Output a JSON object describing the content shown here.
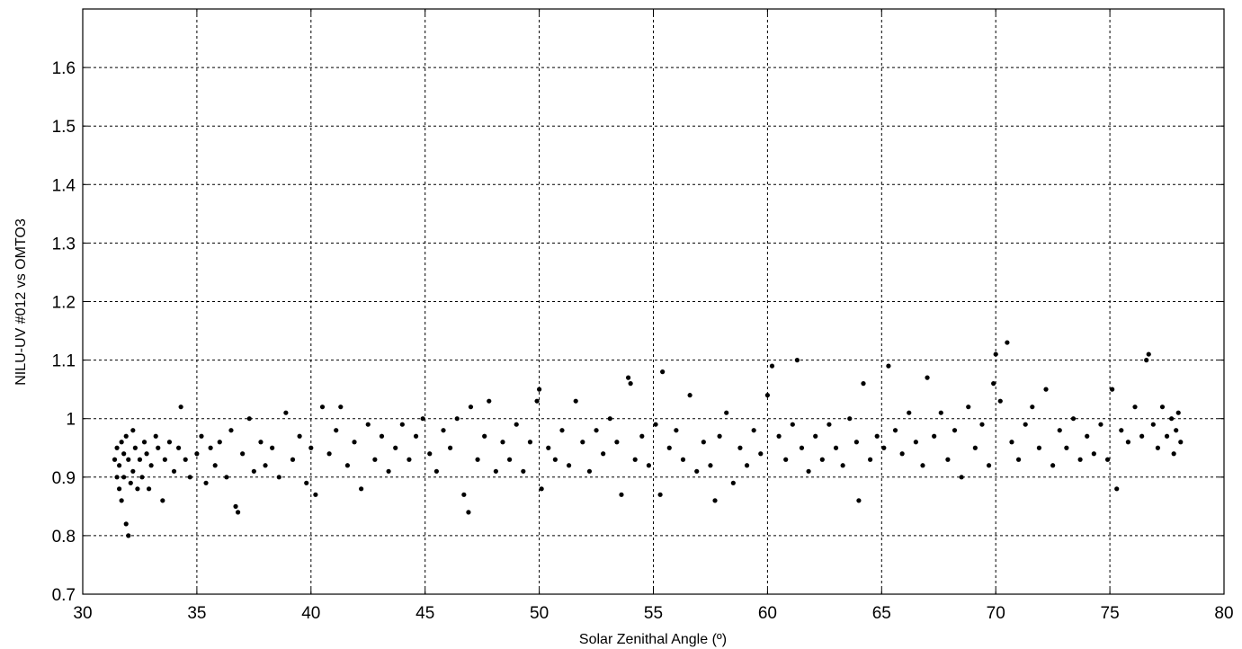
{
  "chart_data": {
    "type": "scatter",
    "title": "",
    "xlabel": "Solar Zenithal Angle (º)",
    "ylabel": "NILU-UV #012 vs OMTO3",
    "xlim": [
      30,
      80
    ],
    "ylim": [
      0.7,
      1.7
    ],
    "x_ticks": [
      "30",
      "35",
      "40",
      "45",
      "50",
      "55",
      "60",
      "65",
      "70",
      "75",
      "80"
    ],
    "y_ticks": [
      "0.7",
      "0.8",
      "0.9",
      "1",
      "1.1",
      "1.2",
      "1.3",
      "1.4",
      "1.5",
      "1.6"
    ],
    "grid": true,
    "marker_color": "#000000",
    "series": [
      {
        "points": [
          [
            31.4,
            0.93
          ],
          [
            31.5,
            0.9
          ],
          [
            31.5,
            0.95
          ],
          [
            31.6,
            0.88
          ],
          [
            31.6,
            0.92
          ],
          [
            31.7,
            0.96
          ],
          [
            31.7,
            0.86
          ],
          [
            31.8,
            0.94
          ],
          [
            31.8,
            0.9
          ],
          [
            31.9,
            0.97
          ],
          [
            31.9,
            0.82
          ],
          [
            32.0,
            0.8
          ],
          [
            32.0,
            0.93
          ],
          [
            32.1,
            0.89
          ],
          [
            32.2,
            0.98
          ],
          [
            32.2,
            0.91
          ],
          [
            32.3,
            0.95
          ],
          [
            32.4,
            0.88
          ],
          [
            32.5,
            0.93
          ],
          [
            32.6,
            0.9
          ],
          [
            32.7,
            0.96
          ],
          [
            32.8,
            0.94
          ],
          [
            32.9,
            0.88
          ],
          [
            33.0,
            0.92
          ],
          [
            33.2,
            0.97
          ],
          [
            33.3,
            0.95
          ],
          [
            33.5,
            0.86
          ],
          [
            33.6,
            0.93
          ],
          [
            33.8,
            0.96
          ],
          [
            34.0,
            0.91
          ],
          [
            34.2,
            0.95
          ],
          [
            34.3,
            1.02
          ],
          [
            34.5,
            0.93
          ],
          [
            34.7,
            0.9
          ],
          [
            35.0,
            0.94
          ],
          [
            35.2,
            0.97
          ],
          [
            35.4,
            0.89
          ],
          [
            35.6,
            0.95
          ],
          [
            35.8,
            0.92
          ],
          [
            36.0,
            0.96
          ],
          [
            36.3,
            0.9
          ],
          [
            36.5,
            0.98
          ],
          [
            36.7,
            0.85
          ],
          [
            36.8,
            0.84
          ],
          [
            37.0,
            0.94
          ],
          [
            37.3,
            1.0
          ],
          [
            37.5,
            0.91
          ],
          [
            37.8,
            0.96
          ],
          [
            38.0,
            0.92
          ],
          [
            38.3,
            0.95
          ],
          [
            38.6,
            0.9
          ],
          [
            38.9,
            1.01
          ],
          [
            39.2,
            0.93
          ],
          [
            39.5,
            0.97
          ],
          [
            39.8,
            0.89
          ],
          [
            40.0,
            0.95
          ],
          [
            40.2,
            0.87
          ],
          [
            40.5,
            1.02
          ],
          [
            40.8,
            0.94
          ],
          [
            41.1,
            0.98
          ],
          [
            41.3,
            1.02
          ],
          [
            41.6,
            0.92
          ],
          [
            41.9,
            0.96
          ],
          [
            42.2,
            0.88
          ],
          [
            42.5,
            0.99
          ],
          [
            42.8,
            0.93
          ],
          [
            43.1,
            0.97
          ],
          [
            43.4,
            0.91
          ],
          [
            43.7,
            0.95
          ],
          [
            44.0,
            0.99
          ],
          [
            44.3,
            0.93
          ],
          [
            44.6,
            0.97
          ],
          [
            44.9,
            1.0
          ],
          [
            45.2,
            0.94
          ],
          [
            45.5,
            0.91
          ],
          [
            45.8,
            0.98
          ],
          [
            46.1,
            0.95
          ],
          [
            46.4,
            1.0
          ],
          [
            46.7,
            0.87
          ],
          [
            46.9,
            0.84
          ],
          [
            47.0,
            1.02
          ],
          [
            47.3,
            0.93
          ],
          [
            47.6,
            0.97
          ],
          [
            47.8,
            1.03
          ],
          [
            48.1,
            0.91
          ],
          [
            48.4,
            0.96
          ],
          [
            48.7,
            0.93
          ],
          [
            49.0,
            0.99
          ],
          [
            49.3,
            0.91
          ],
          [
            49.6,
            0.96
          ],
          [
            49.9,
            1.03
          ],
          [
            50.0,
            1.05
          ],
          [
            50.1,
            0.88
          ],
          [
            50.4,
            0.95
          ],
          [
            50.7,
            0.93
          ],
          [
            51.0,
            0.98
          ],
          [
            51.3,
            0.92
          ],
          [
            51.6,
            1.03
          ],
          [
            51.9,
            0.96
          ],
          [
            52.2,
            0.91
          ],
          [
            52.5,
            0.98
          ],
          [
            52.8,
            0.94
          ],
          [
            53.1,
            1.0
          ],
          [
            53.4,
            0.96
          ],
          [
            53.6,
            0.87
          ],
          [
            53.9,
            1.07
          ],
          [
            54.0,
            1.06
          ],
          [
            54.2,
            0.93
          ],
          [
            54.5,
            0.97
          ],
          [
            54.8,
            0.92
          ],
          [
            55.1,
            0.99
          ],
          [
            55.3,
            0.87
          ],
          [
            55.4,
            1.08
          ],
          [
            55.7,
            0.95
          ],
          [
            56.0,
            0.98
          ],
          [
            56.3,
            0.93
          ],
          [
            56.6,
            1.04
          ],
          [
            56.9,
            0.91
          ],
          [
            57.2,
            0.96
          ],
          [
            57.5,
            0.92
          ],
          [
            57.7,
            0.86
          ],
          [
            57.9,
            0.97
          ],
          [
            58.2,
            1.01
          ],
          [
            58.5,
            0.89
          ],
          [
            58.8,
            0.95
          ],
          [
            59.1,
            0.92
          ],
          [
            59.4,
            0.98
          ],
          [
            59.7,
            0.94
          ],
          [
            60.0,
            1.04
          ],
          [
            60.2,
            1.09
          ],
          [
            60.5,
            0.97
          ],
          [
            60.8,
            0.93
          ],
          [
            61.1,
            0.99
          ],
          [
            61.3,
            1.1
          ],
          [
            61.5,
            0.95
          ],
          [
            61.8,
            0.91
          ],
          [
            62.1,
            0.97
          ],
          [
            62.4,
            0.93
          ],
          [
            62.7,
            0.99
          ],
          [
            63.0,
            0.95
          ],
          [
            63.3,
            0.92
          ],
          [
            63.6,
            1.0
          ],
          [
            63.9,
            0.96
          ],
          [
            64.0,
            0.86
          ],
          [
            64.2,
            1.06
          ],
          [
            64.5,
            0.93
          ],
          [
            64.8,
            0.97
          ],
          [
            65.1,
            0.95
          ],
          [
            65.3,
            1.09
          ],
          [
            65.6,
            0.98
          ],
          [
            65.9,
            0.94
          ],
          [
            66.2,
            1.01
          ],
          [
            66.5,
            0.96
          ],
          [
            66.8,
            0.92
          ],
          [
            67.0,
            1.07
          ],
          [
            67.3,
            0.97
          ],
          [
            67.6,
            1.01
          ],
          [
            67.9,
            0.93
          ],
          [
            68.2,
            0.98
          ],
          [
            68.5,
            0.9
          ],
          [
            68.8,
            1.02
          ],
          [
            69.1,
            0.95
          ],
          [
            69.4,
            0.99
          ],
          [
            69.7,
            0.92
          ],
          [
            69.9,
            1.06
          ],
          [
            70.0,
            1.11
          ],
          [
            70.2,
            1.03
          ],
          [
            70.5,
            1.13
          ],
          [
            70.7,
            0.96
          ],
          [
            71.0,
            0.93
          ],
          [
            71.3,
            0.99
          ],
          [
            71.6,
            1.02
          ],
          [
            71.9,
            0.95
          ],
          [
            72.2,
            1.05
          ],
          [
            72.5,
            0.92
          ],
          [
            72.8,
            0.98
          ],
          [
            73.1,
            0.95
          ],
          [
            73.4,
            1.0
          ],
          [
            73.7,
            0.93
          ],
          [
            74.0,
            0.97
          ],
          [
            74.3,
            0.94
          ],
          [
            74.6,
            0.99
          ],
          [
            74.9,
            0.93
          ],
          [
            75.1,
            1.05
          ],
          [
            75.3,
            0.88
          ],
          [
            75.5,
            0.98
          ],
          [
            75.8,
            0.96
          ],
          [
            76.1,
            1.02
          ],
          [
            76.4,
            0.97
          ],
          [
            76.6,
            1.1
          ],
          [
            76.7,
            1.11
          ],
          [
            76.9,
            0.99
          ],
          [
            77.1,
            0.95
          ],
          [
            77.3,
            1.02
          ],
          [
            77.5,
            0.97
          ],
          [
            77.7,
            1.0
          ],
          [
            77.8,
            0.94
          ],
          [
            77.9,
            0.98
          ],
          [
            78.0,
            1.01
          ],
          [
            78.1,
            0.96
          ]
        ]
      }
    ]
  }
}
